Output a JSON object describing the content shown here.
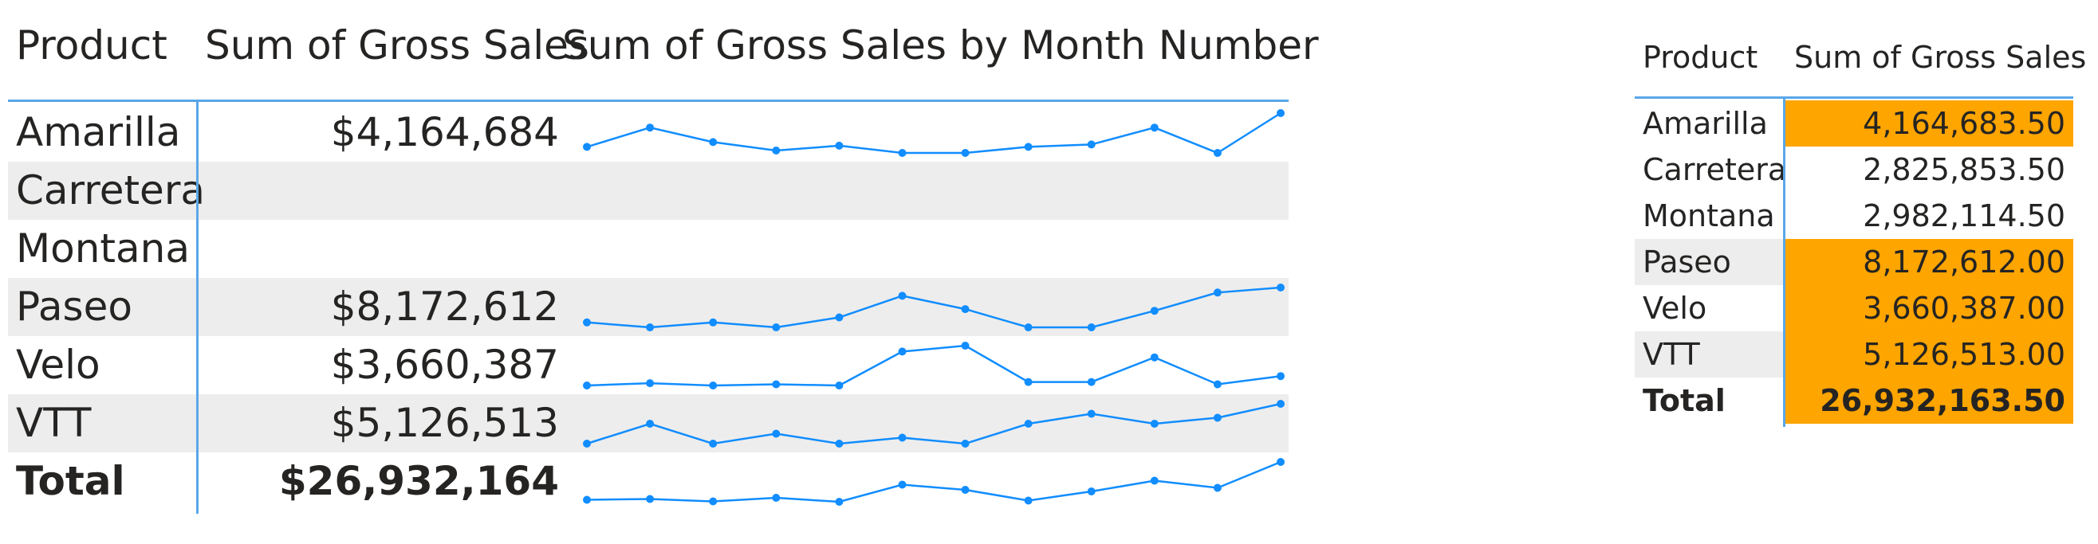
{
  "table1": {
    "headers": {
      "product": "Product",
      "sum": "Sum of Gross Sales",
      "sparkline": "Sum of Gross Sales by Month Number"
    },
    "rows": [
      {
        "name": "Amarilla",
        "value": "$4,164,684",
        "band": false,
        "total": false,
        "spark": [
          330,
          410,
          350,
          315,
          335,
          305,
          305,
          330,
          340,
          410,
          305,
          470
        ]
      },
      {
        "name": "Carretera",
        "value": "",
        "band": true,
        "total": false,
        "spark": null
      },
      {
        "name": "Montana",
        "value": "",
        "band": false,
        "total": false,
        "spark": null
      },
      {
        "name": "Paseo",
        "value": "$8,172,612",
        "band": true,
        "total": false,
        "spark": [
          560,
          530,
          560,
          530,
          590,
          720,
          640,
          530,
          530,
          630,
          740,
          770
        ]
      },
      {
        "name": "Velo",
        "value": "$3,660,387",
        "band": false,
        "total": false,
        "spark": [
          220,
          240,
          220,
          230,
          220,
          510,
          560,
          250,
          250,
          460,
          230,
          300
        ]
      },
      {
        "name": "VTT",
        "value": "$5,126,513",
        "band": true,
        "total": false,
        "spark": [
          300,
          400,
          300,
          350,
          300,
          330,
          300,
          400,
          450,
          400,
          430,
          500
        ]
      },
      {
        "name": "Total",
        "value": "$26,932,164",
        "band": false,
        "total": true,
        "spark": [
          1800,
          1820,
          1760,
          1850,
          1750,
          2180,
          2050,
          1780,
          2010,
          2280,
          2100,
          2750
        ]
      }
    ],
    "spark_color": "#118dff"
  },
  "table2": {
    "headers": {
      "product": "Product",
      "sum": "Sum of Gross Sales"
    },
    "rows": [
      {
        "name": "Amarilla",
        "value": "4,164,683.50",
        "highlight": true,
        "band": false,
        "total": false
      },
      {
        "name": "Carretera",
        "value": "2,825,853.50",
        "highlight": false,
        "band": false,
        "total": false
      },
      {
        "name": "Montana",
        "value": "2,982,114.50",
        "highlight": false,
        "band": false,
        "total": false
      },
      {
        "name": "Paseo",
        "value": "8,172,612.00",
        "highlight": true,
        "band": true,
        "total": false
      },
      {
        "name": "Velo",
        "value": "3,660,387.00",
        "highlight": true,
        "band": false,
        "total": false
      },
      {
        "name": "VTT",
        "value": "5,126,513.00",
        "highlight": true,
        "band": true,
        "total": false
      },
      {
        "name": "Total",
        "value": "26,932,163.50",
        "highlight": true,
        "band": false,
        "total": true
      }
    ],
    "highlight_color": "#ffa500"
  }
}
